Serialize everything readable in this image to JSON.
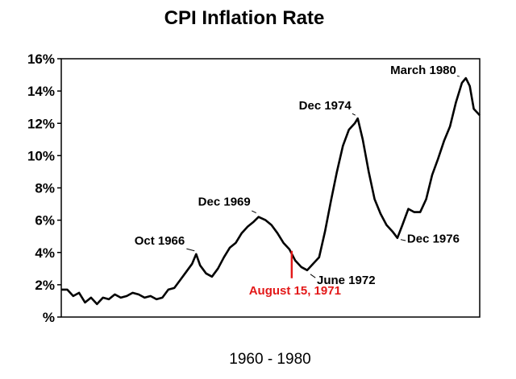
{
  "chart_data": {
    "type": "line",
    "title": "CPI Inflation Rate",
    "xlabel": "1960 - 1980",
    "ylabel": "",
    "xlim": [
      1960.0,
      1981.1
    ],
    "ylim": [
      0,
      16
    ],
    "grid": false,
    "yticks": [
      {
        "value": 0,
        "label": "%"
      },
      {
        "value": 2,
        "label": "2%"
      },
      {
        "value": 4,
        "label": "4%"
      },
      {
        "value": 6,
        "label": "6%"
      },
      {
        "value": 8,
        "label": "8%"
      },
      {
        "value": 10,
        "label": "10%"
      },
      {
        "value": 12,
        "label": "12%"
      },
      {
        "value": 14,
        "label": "14%"
      },
      {
        "value": 16,
        "label": "16%"
      }
    ],
    "series": [
      {
        "name": "",
        "color": "#000000",
        "x": [
          1960.0,
          1960.3,
          1960.6,
          1960.9,
          1961.2,
          1961.5,
          1961.8,
          1962.1,
          1962.4,
          1962.7,
          1963.0,
          1963.3,
          1963.6,
          1963.9,
          1964.2,
          1964.5,
          1964.8,
          1965.1,
          1965.4,
          1965.7,
          1966.0,
          1966.3,
          1966.6,
          1966.8,
          1967.0,
          1967.3,
          1967.6,
          1967.9,
          1968.2,
          1968.5,
          1968.8,
          1969.1,
          1969.4,
          1969.7,
          1969.95,
          1970.3,
          1970.6,
          1970.9,
          1971.2,
          1971.5,
          1971.8,
          1972.1,
          1972.4,
          1972.7,
          1973.0,
          1973.3,
          1973.6,
          1973.9,
          1974.2,
          1974.5,
          1974.8,
          1974.95,
          1975.2,
          1975.5,
          1975.8,
          1976.1,
          1976.4,
          1976.7,
          1976.95,
          1977.2,
          1977.5,
          1977.8,
          1978.1,
          1978.4,
          1978.7,
          1979.0,
          1979.3,
          1979.6,
          1979.9,
          1980.2,
          1980.4,
          1980.6,
          1980.8,
          1981.1
        ],
        "y": [
          1.7,
          1.7,
          1.3,
          1.5,
          0.9,
          1.2,
          0.8,
          1.2,
          1.1,
          1.4,
          1.2,
          1.3,
          1.5,
          1.4,
          1.2,
          1.3,
          1.1,
          1.2,
          1.7,
          1.8,
          2.3,
          2.8,
          3.3,
          3.9,
          3.2,
          2.7,
          2.5,
          3.0,
          3.7,
          4.3,
          4.6,
          5.2,
          5.6,
          5.9,
          6.2,
          6.0,
          5.7,
          5.2,
          4.6,
          4.2,
          3.5,
          3.1,
          2.9,
          3.3,
          3.7,
          5.3,
          7.2,
          9.0,
          10.6,
          11.6,
          12.0,
          12.3,
          11.0,
          9.0,
          7.3,
          6.4,
          5.7,
          5.3,
          4.9,
          5.7,
          6.7,
          6.5,
          6.5,
          7.3,
          8.8,
          9.8,
          10.9,
          11.8,
          13.3,
          14.5,
          14.8,
          14.3,
          12.9,
          12.5
        ]
      }
    ],
    "annotations": [
      {
        "label": "Oct 1966",
        "x": 1966.8,
        "y": 3.9,
        "color": "#000000"
      },
      {
        "label": "Dec 1969",
        "x": 1969.95,
        "y": 6.2,
        "color": "#000000"
      },
      {
        "label": "June 1972",
        "x": 1972.4,
        "y": 2.9,
        "color": "#000000"
      },
      {
        "label": "Dec 1974",
        "x": 1974.95,
        "y": 12.3,
        "color": "#000000"
      },
      {
        "label": "Dec 1976",
        "x": 1976.95,
        "y": 4.9,
        "color": "#000000"
      },
      {
        "label": "March 1980",
        "x": 1980.2,
        "y": 14.8,
        "color": "#000000"
      },
      {
        "label": "August 15, 1971",
        "x": 1971.62,
        "y": 3.6,
        "color": "#e31818"
      }
    ]
  }
}
